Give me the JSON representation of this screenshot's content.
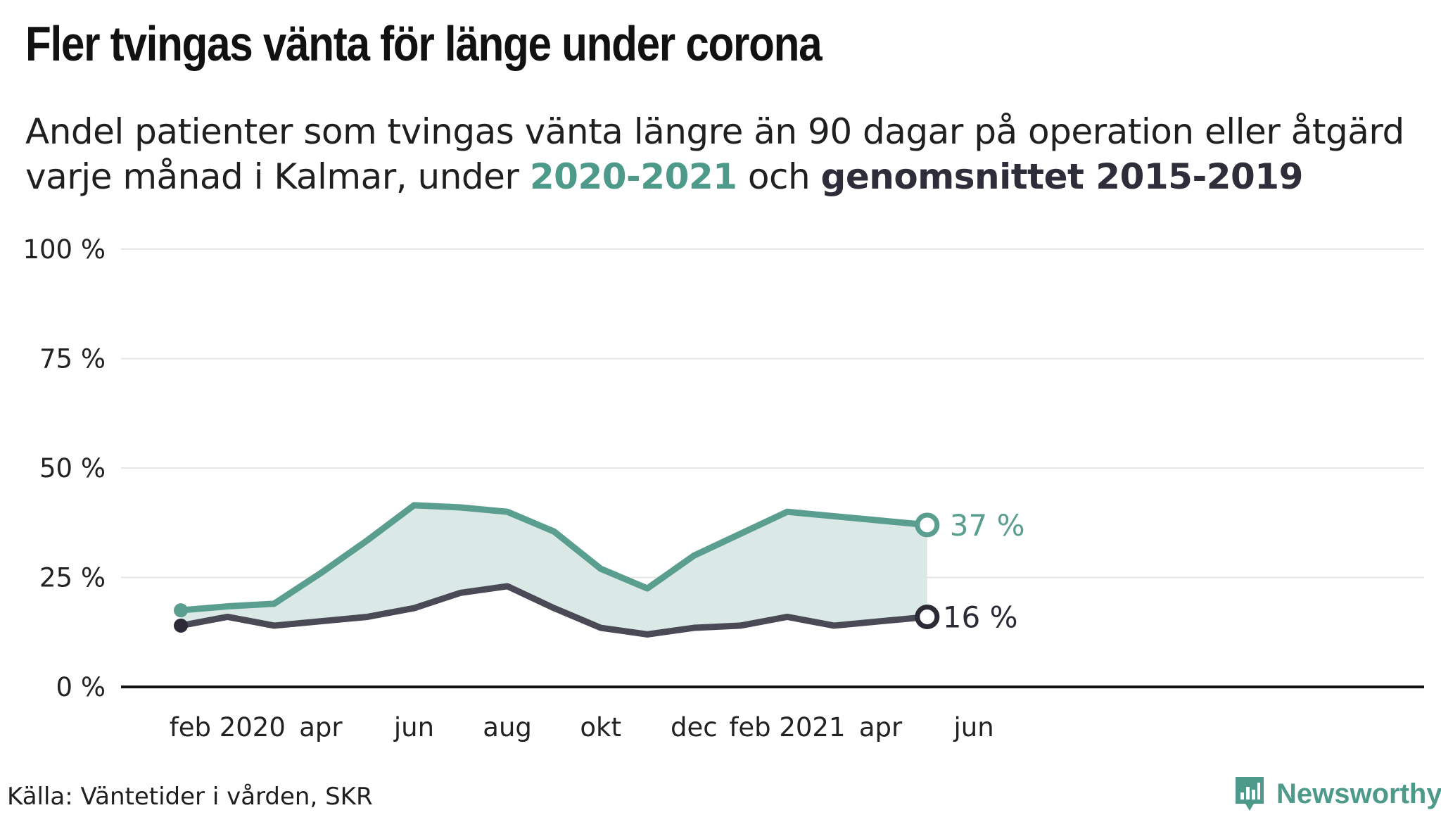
{
  "title": "Fler tvingas vänta för länge under corona",
  "subtitle": {
    "part1": "Andel patienter som tvingas vänta längre än 90 dagar på operation eller åtgärd varje månad i Kalmar, under ",
    "highlight1": "2020-2021",
    "part2": " och ",
    "highlight2": "genomsnittet 2015-2019"
  },
  "source": "Källa: Väntetider i vården, SKR",
  "brand": {
    "name": "Newsworthy",
    "icon": "newsworthy-logo-icon"
  },
  "colors": {
    "series_2020_2021": "#5a9e8f",
    "series_avg": "#4a4956",
    "fill": "#dae9e5",
    "axis": "#111111",
    "grid": "#e6e6e6"
  },
  "chart_data": {
    "type": "line",
    "x": [
      "2020-01",
      "2020-02",
      "2020-03",
      "2020-04",
      "2020-05",
      "2020-06",
      "2020-07",
      "2020-08",
      "2020-09",
      "2020-10",
      "2020-11",
      "2020-12",
      "2021-01",
      "2021-02",
      "2021-03",
      "2021-04",
      "2021-05"
    ],
    "series": [
      {
        "name": "2020-2021",
        "values": [
          17.5,
          18.4,
          19,
          26,
          33.5,
          41.5,
          41,
          40,
          35.5,
          27,
          22.5,
          30,
          35,
          40,
          39,
          38,
          37
        ]
      },
      {
        "name": "genomsnittet 2015-2019",
        "values": [
          14,
          16,
          14,
          15,
          16,
          18,
          21.5,
          23,
          18,
          13.5,
          12,
          13.5,
          14,
          16,
          14,
          15,
          16
        ]
      }
    ],
    "ylim": [
      0,
      100
    ],
    "yticks": [
      0,
      25,
      50,
      75,
      100
    ],
    "ytick_labels": [
      "0 %",
      "25 %",
      "50 %",
      "75 %",
      "100 %"
    ],
    "xtick_labels": [
      {
        "x": "2020-02",
        "label": "feb 2020"
      },
      {
        "x": "2020-04",
        "label": "apr"
      },
      {
        "x": "2020-06",
        "label": "jun"
      },
      {
        "x": "2020-08",
        "label": "aug"
      },
      {
        "x": "2020-10",
        "label": "okt"
      },
      {
        "x": "2020-12",
        "label": "dec"
      },
      {
        "x": "2021-02",
        "label": "feb 2021"
      },
      {
        "x": "2021-04",
        "label": "apr"
      },
      {
        "x": "2021-06",
        "label": "jun"
      }
    ],
    "end_labels": [
      "37 %",
      "16 %"
    ],
    "grid": true,
    "fill_between": true
  }
}
